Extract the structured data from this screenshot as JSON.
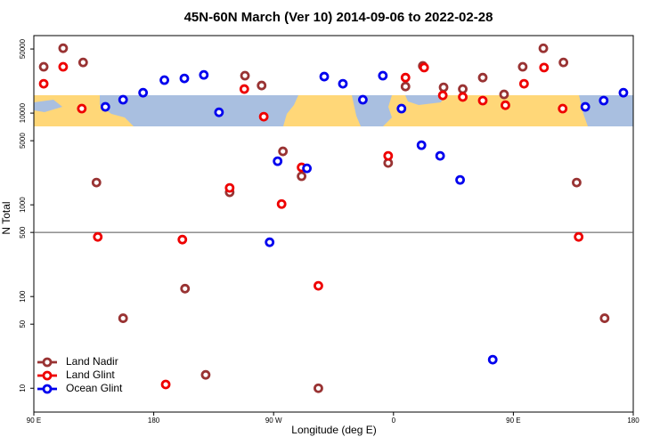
{
  "chart_data": {
    "type": "scatter",
    "title": "45N-60N March (Ver 10)   2014-09-06 to 2022-02-28",
    "x_label": "Longitude (deg E)",
    "y_label": "N Total",
    "xlim": [
      90,
      540
    ],
    "xticks": [
      {
        "value": 90,
        "label": "90 E"
      },
      {
        "value": 180,
        "label": "180"
      },
      {
        "value": 270,
        "label": "90 W"
      },
      {
        "value": 360,
        "label": "0"
      },
      {
        "value": 450,
        "label": "90 E"
      },
      {
        "value": 540,
        "label": "180"
      }
    ],
    "ylim": [
      5.5,
      70000
    ],
    "yticks": [
      10,
      50,
      100,
      500,
      1000,
      5000,
      10000,
      50000
    ],
    "log_y": true,
    "hline": 500,
    "legend_position": "bottom-left",
    "series": [
      {
        "name": "Land Nadir",
        "color": "#993333",
        "x": [
          97.4,
          112,
          127,
          137,
          157,
          203.5,
          219,
          237,
          248.5,
          261,
          277,
          291,
          303.6,
          356,
          369,
          382,
          397.6,
          412,
          427,
          443,
          457,
          472.5,
          487.6,
          497.5,
          518.5
        ],
        "values": [
          32000,
          51000,
          35700,
          1750,
          58,
          122,
          14,
          1370,
          25600,
          20000,
          3830,
          2050,
          10,
          2860,
          19500,
          32700,
          19100,
          18300,
          24400,
          16000,
          32000,
          50900,
          35700,
          1750,
          58
        ]
      },
      {
        "name": "Land Glint",
        "color": "#ee0000",
        "x": [
          97.4,
          112,
          126,
          138,
          189,
          201.5,
          237,
          248,
          262.6,
          276,
          291,
          303.6,
          356,
          369,
          383,
          397,
          412,
          427,
          444,
          458,
          473,
          487,
          499
        ],
        "values": [
          20900,
          32000,
          11200,
          447,
          11,
          418,
          1530,
          18300,
          9140,
          1020,
          2560,
          131,
          3420,
          24400,
          31400,
          15600,
          15000,
          13700,
          12200,
          20900,
          31400,
          11200,
          447
        ]
      },
      {
        "name": "Ocean Glint",
        "color": "#0000ee",
        "x": [
          143.7,
          157,
          172,
          188,
          203,
          217.6,
          229,
          267,
          273,
          295,
          308,
          322,
          337,
          352,
          366,
          381,
          395,
          410,
          434.5,
          504,
          517.8,
          532.6
        ],
        "values": [
          11700,
          14000,
          16700,
          22900,
          23900,
          26100,
          10200,
          391,
          2990,
          2500,
          25000,
          20900,
          14000,
          25600,
          11200,
          4470,
          3420,
          1870,
          20.5,
          11700,
          13700,
          16700
        ]
      }
    ]
  }
}
